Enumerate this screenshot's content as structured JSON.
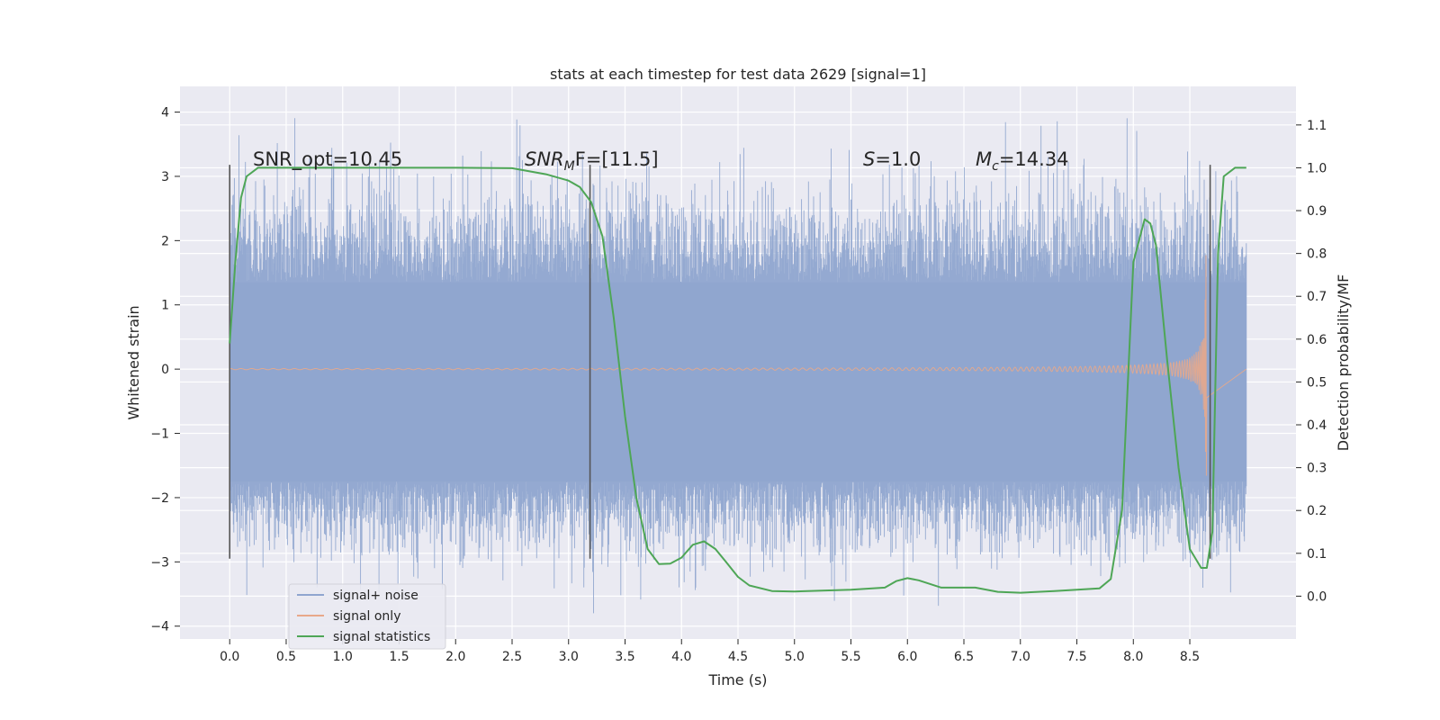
{
  "chart_data": {
    "type": "line",
    "title": "stats at each timestep for test data 2629 [signal=1]",
    "xlabel": "Time (s)",
    "ylabel": "Whitened strain",
    "y2label": "Detection probability/MF",
    "xlim": [
      -0.44,
      9.44
    ],
    "ylim": [
      -4.2,
      4.4
    ],
    "y2lim": [
      -0.1,
      1.19
    ],
    "xticks": [
      "0.0",
      "0.5",
      "1.0",
      "1.5",
      "2.0",
      "2.5",
      "3.0",
      "3.5",
      "4.0",
      "4.5",
      "5.0",
      "5.5",
      "6.0",
      "6.5",
      "7.0",
      "7.5",
      "8.0",
      "8.5"
    ],
    "yticks": [
      "−4",
      "−3",
      "−2",
      "−1",
      "0",
      "1",
      "2",
      "3",
      "4"
    ],
    "y2ticks": [
      "0.0",
      "0.1",
      "0.2",
      "0.3",
      "0.4",
      "0.5",
      "0.6",
      "0.7",
      "0.8",
      "0.9",
      "1.0",
      "1.1"
    ],
    "grid": true,
    "legend_position": "lower-left",
    "annotations": {
      "snr_opt": "SNR_opt=10.45",
      "snr_mf_sym": "SNR",
      "snr_mf_sub": "M",
      "snr_mf_rest": "F=[11.5]",
      "s_sym": "S",
      "s_rest": "=1.0",
      "mc_sym": "M",
      "mc_sub": "c",
      "mc_rest": "=14.34"
    },
    "vertical_markers": [
      {
        "x": 0.0,
        "y_range": [
          -2.95,
          3.18
        ]
      },
      {
        "x": 3.19,
        "y_range": [
          -2.95,
          3.18
        ]
      },
      {
        "x": 8.68,
        "y_range": [
          -2.95,
          3.18
        ]
      }
    ],
    "series": [
      {
        "name": "signal+ noise",
        "color": "#8fa5cf",
        "x_range": [
          0.0,
          9.0
        ],
        "band": [
          -1.75,
          1.35
        ],
        "peak_max": 4.0,
        "trough_min": -3.8
      },
      {
        "name": "signal only",
        "color": "#e8a88a",
        "x_range": [
          0.0,
          9.0
        ],
        "chirp_end": 8.65,
        "max_amp": 1.95
      },
      {
        "name": "signal statistics",
        "color": "#4ea656",
        "axis": "right",
        "x": [
          0.0,
          0.05,
          0.1,
          0.15,
          0.25,
          0.4,
          1.0,
          2.0,
          2.5,
          2.8,
          3.0,
          3.1,
          3.2,
          3.3,
          3.4,
          3.5,
          3.6,
          3.7,
          3.8,
          3.9,
          4.0,
          4.1,
          4.2,
          4.3,
          4.4,
          4.5,
          4.6,
          4.8,
          5.0,
          5.5,
          5.8,
          5.9,
          6.0,
          6.1,
          6.3,
          6.6,
          6.8,
          7.0,
          7.3,
          7.5,
          7.7,
          7.8,
          7.9,
          8.0,
          8.1,
          8.15,
          8.2,
          8.3,
          8.4,
          8.5,
          8.6,
          8.65,
          8.7,
          8.75,
          8.8,
          8.9,
          9.0
        ],
        "y": [
          0.59,
          0.78,
          0.93,
          0.98,
          1.0,
          1.0,
          1.0,
          1.0,
          0.999,
          0.985,
          0.97,
          0.955,
          0.92,
          0.84,
          0.65,
          0.42,
          0.23,
          0.11,
          0.075,
          0.076,
          0.09,
          0.12,
          0.128,
          0.11,
          0.078,
          0.045,
          0.025,
          0.012,
          0.011,
          0.015,
          0.02,
          0.035,
          0.042,
          0.037,
          0.02,
          0.02,
          0.01,
          0.008,
          0.012,
          0.015,
          0.018,
          0.04,
          0.2,
          0.78,
          0.88,
          0.87,
          0.82,
          0.55,
          0.3,
          0.11,
          0.066,
          0.066,
          0.15,
          0.8,
          0.98,
          1.0,
          1.0
        ]
      }
    ]
  }
}
